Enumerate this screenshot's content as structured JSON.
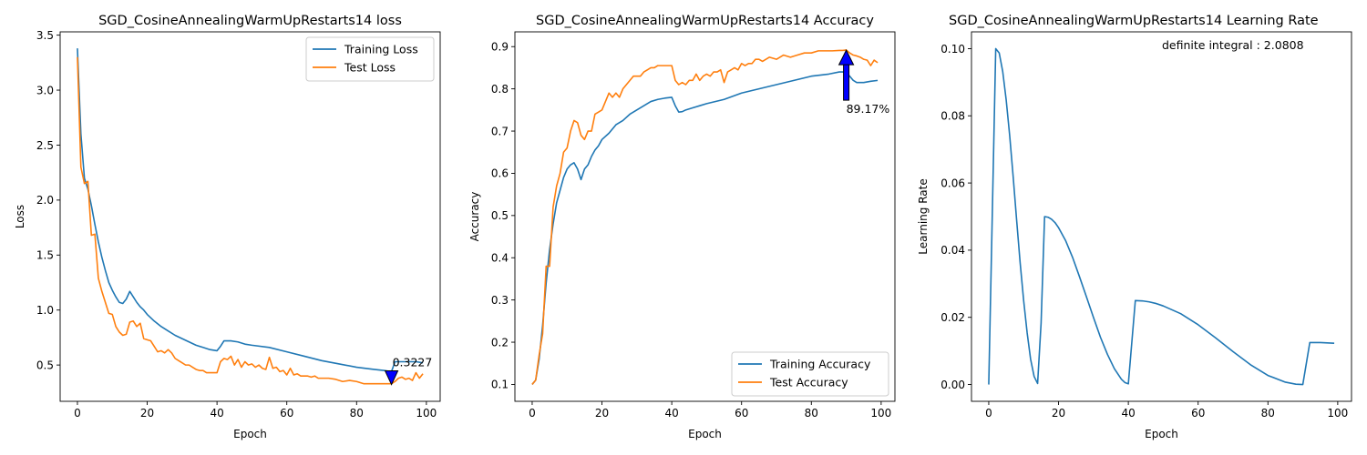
{
  "colors": {
    "training": "#1f77b4",
    "test": "#ff7f0e",
    "arrow_fill": "#0000ff",
    "arrow_edge": "#000000"
  },
  "chart_data": [
    {
      "type": "line",
      "title": "SGD_CosineAnnealingWarmUpRestarts14 loss",
      "xlabel": "Epoch",
      "ylabel": "Loss",
      "xlim": [
        -4.95,
        103.95
      ],
      "ylim": [
        0.17,
        3.53
      ],
      "xticks": [
        0,
        20,
        40,
        60,
        80,
        100
      ],
      "yticks": [
        0.5,
        1.0,
        1.5,
        2.0,
        2.5,
        3.0,
        3.5
      ],
      "ytick_labels": [
        "0.5",
        "1.0",
        "1.5",
        "2.0",
        "2.5",
        "3.0",
        "3.5"
      ],
      "legend": "top-right",
      "grid": false,
      "series": [
        {
          "name": "Training Loss",
          "color": "#1f77b4",
          "x": [
            0,
            1,
            2,
            3,
            4,
            5,
            6,
            7,
            8,
            9,
            10,
            11,
            12,
            13,
            14,
            15,
            16,
            17,
            18,
            19,
            20,
            22,
            24,
            26,
            28,
            30,
            32,
            34,
            36,
            38,
            40,
            41,
            42,
            44,
            46,
            48,
            50,
            55,
            60,
            65,
            70,
            75,
            80,
            85,
            88,
            90,
            91,
            93,
            95,
            97,
            99
          ],
          "y": [
            3.38,
            2.6,
            2.2,
            2.1,
            1.95,
            1.78,
            1.62,
            1.48,
            1.36,
            1.25,
            1.18,
            1.12,
            1.07,
            1.06,
            1.1,
            1.17,
            1.12,
            1.07,
            1.03,
            1.0,
            0.96,
            0.9,
            0.85,
            0.81,
            0.77,
            0.74,
            0.71,
            0.68,
            0.66,
            0.64,
            0.63,
            0.67,
            0.72,
            0.72,
            0.71,
            0.69,
            0.68,
            0.66,
            0.62,
            0.58,
            0.54,
            0.51,
            0.48,
            0.46,
            0.45,
            0.44,
            0.53,
            0.53,
            0.53,
            0.53,
            0.52
          ]
        },
        {
          "name": "Test Loss",
          "color": "#ff7f0e",
          "x": [
            0,
            1,
            2,
            3,
            4,
            5,
            6,
            7,
            8,
            9,
            10,
            11,
            12,
            13,
            14,
            15,
            16,
            17,
            18,
            19,
            20,
            21,
            22,
            23,
            24,
            25,
            26,
            27,
            28,
            29,
            30,
            31,
            32,
            33,
            34,
            35,
            36,
            37,
            38,
            39,
            40,
            41,
            42,
            43,
            44,
            45,
            46,
            47,
            48,
            49,
            50,
            51,
            52,
            53,
            54,
            55,
            56,
            57,
            58,
            59,
            60,
            61,
            62,
            63,
            64,
            65,
            66,
            67,
            68,
            69,
            70,
            72,
            74,
            76,
            78,
            80,
            82,
            84,
            86,
            88,
            89,
            90,
            91,
            92,
            93,
            94,
            95,
            96,
            97,
            98,
            99
          ],
          "y": [
            3.3,
            2.3,
            2.15,
            2.17,
            1.68,
            1.69,
            1.29,
            1.17,
            1.07,
            0.97,
            0.96,
            0.85,
            0.8,
            0.77,
            0.78,
            0.89,
            0.9,
            0.85,
            0.88,
            0.74,
            0.73,
            0.72,
            0.67,
            0.62,
            0.63,
            0.61,
            0.64,
            0.61,
            0.56,
            0.54,
            0.52,
            0.5,
            0.5,
            0.48,
            0.46,
            0.45,
            0.45,
            0.43,
            0.43,
            0.43,
            0.43,
            0.53,
            0.56,
            0.55,
            0.58,
            0.5,
            0.55,
            0.48,
            0.53,
            0.5,
            0.51,
            0.48,
            0.5,
            0.47,
            0.46,
            0.57,
            0.47,
            0.48,
            0.44,
            0.45,
            0.41,
            0.47,
            0.41,
            0.42,
            0.4,
            0.4,
            0.4,
            0.39,
            0.4,
            0.38,
            0.38,
            0.38,
            0.37,
            0.35,
            0.36,
            0.35,
            0.33,
            0.33,
            0.33,
            0.33,
            0.33,
            0.33,
            0.35,
            0.38,
            0.39,
            0.37,
            0.38,
            0.36,
            0.43,
            0.38,
            0.42
          ]
        }
      ],
      "annotation": {
        "text": "0.3227",
        "x": 90,
        "y": 0.3227,
        "direction": "down"
      }
    },
    {
      "type": "line",
      "title": "SGD_CosineAnnealingWarmUpRestarts14 Accuracy",
      "xlabel": "Epoch",
      "ylabel": "Accuracy",
      "xlim": [
        -4.95,
        103.95
      ],
      "ylim": [
        0.06,
        0.935
      ],
      "xticks": [
        0,
        20,
        40,
        60,
        80,
        100
      ],
      "yticks": [
        0.1,
        0.2,
        0.3,
        0.4,
        0.5,
        0.6,
        0.7,
        0.8,
        0.9
      ],
      "ytick_labels": [
        "0.1",
        "0.2",
        "0.3",
        "0.4",
        "0.5",
        "0.6",
        "0.7",
        "0.8",
        "0.9"
      ],
      "legend": "lower-right",
      "grid": false,
      "series": [
        {
          "name": "Training Accuracy",
          "color": "#1f77b4",
          "x": [
            0,
            1,
            2,
            3,
            4,
            5,
            6,
            7,
            8,
            9,
            10,
            11,
            12,
            13,
            14,
            15,
            16,
            17,
            18,
            19,
            20,
            22,
            24,
            26,
            28,
            30,
            32,
            34,
            36,
            38,
            40,
            41,
            42,
            43,
            44,
            46,
            48,
            50,
            55,
            60,
            65,
            70,
            75,
            80,
            85,
            88,
            89,
            90,
            91,
            92,
            93,
            95,
            97,
            99
          ],
          "y": [
            0.1,
            0.11,
            0.16,
            0.24,
            0.34,
            0.42,
            0.48,
            0.53,
            0.56,
            0.59,
            0.61,
            0.62,
            0.625,
            0.61,
            0.585,
            0.61,
            0.62,
            0.64,
            0.655,
            0.665,
            0.68,
            0.695,
            0.715,
            0.725,
            0.74,
            0.75,
            0.76,
            0.77,
            0.775,
            0.778,
            0.78,
            0.76,
            0.745,
            0.746,
            0.75,
            0.755,
            0.76,
            0.765,
            0.775,
            0.79,
            0.8,
            0.81,
            0.82,
            0.83,
            0.835,
            0.84,
            0.84,
            0.838,
            0.83,
            0.82,
            0.815,
            0.815,
            0.818,
            0.82
          ]
        },
        {
          "name": "Test Accuracy",
          "color": "#ff7f0e",
          "x": [
            0,
            1,
            2,
            3,
            4,
            5,
            6,
            7,
            8,
            9,
            10,
            11,
            12,
            13,
            14,
            15,
            16,
            17,
            18,
            19,
            20,
            21,
            22,
            23,
            24,
            25,
            26,
            27,
            28,
            29,
            30,
            31,
            32,
            33,
            34,
            35,
            36,
            37,
            38,
            39,
            40,
            41,
            42,
            43,
            44,
            45,
            46,
            47,
            48,
            49,
            50,
            51,
            52,
            53,
            54,
            55,
            56,
            57,
            58,
            59,
            60,
            61,
            62,
            63,
            64,
            65,
            66,
            68,
            70,
            72,
            74,
            76,
            78,
            80,
            82,
            84,
            86,
            88,
            89,
            90,
            91,
            92,
            93,
            94,
            95,
            96,
            97,
            98,
            99
          ],
          "y": [
            0.1,
            0.11,
            0.17,
            0.22,
            0.38,
            0.38,
            0.52,
            0.57,
            0.6,
            0.65,
            0.66,
            0.7,
            0.725,
            0.72,
            0.69,
            0.68,
            0.7,
            0.7,
            0.74,
            0.745,
            0.75,
            0.77,
            0.79,
            0.78,
            0.79,
            0.78,
            0.8,
            0.81,
            0.82,
            0.83,
            0.83,
            0.83,
            0.84,
            0.845,
            0.85,
            0.85,
            0.855,
            0.855,
            0.855,
            0.855,
            0.855,
            0.82,
            0.81,
            0.815,
            0.81,
            0.82,
            0.82,
            0.835,
            0.82,
            0.83,
            0.835,
            0.83,
            0.84,
            0.84,
            0.845,
            0.815,
            0.84,
            0.845,
            0.85,
            0.845,
            0.86,
            0.855,
            0.86,
            0.86,
            0.87,
            0.87,
            0.865,
            0.875,
            0.87,
            0.88,
            0.875,
            0.88,
            0.885,
            0.885,
            0.89,
            0.89,
            0.89,
            0.891,
            0.891,
            0.892,
            0.885,
            0.88,
            0.878,
            0.875,
            0.87,
            0.868,
            0.855,
            0.868,
            0.862
          ]
        }
      ],
      "annotation": {
        "text": "89.17%",
        "x": 90,
        "y": 0.8917,
        "direction": "up"
      }
    },
    {
      "type": "line",
      "title": "SGD_CosineAnnealingWarmUpRestarts14 Learning Rate",
      "xlabel": "Epoch",
      "ylabel": "Learning Rate",
      "xlim": [
        -4.95,
        103.95
      ],
      "ylim": [
        -0.005,
        0.105
      ],
      "xticks": [
        0,
        20,
        40,
        60,
        80,
        100
      ],
      "yticks": [
        0.0,
        0.02,
        0.04,
        0.06,
        0.08,
        0.1
      ],
      "ytick_labels": [
        "0.00",
        "0.02",
        "0.04",
        "0.06",
        "0.08",
        "0.10"
      ],
      "grid": false,
      "series": [
        {
          "color": "#1f77b4",
          "x": [
            0,
            2,
            3,
            4,
            5,
            6,
            7,
            8,
            9,
            10,
            11,
            12,
            13,
            14,
            15,
            16,
            17,
            18,
            19,
            20,
            22,
            24,
            26,
            28,
            30,
            32,
            34,
            36,
            38,
            39,
            40,
            42,
            44,
            46,
            48,
            50,
            55,
            60,
            65,
            70,
            75,
            80,
            85,
            88,
            90,
            92,
            95,
            99
          ],
          "y": [
            0.0,
            0.1,
            0.0987,
            0.0932,
            0.0847,
            0.0741,
            0.0618,
            0.0488,
            0.0362,
            0.025,
            0.0154,
            0.0075,
            0.0024,
            0.0003,
            0.0183,
            0.05,
            0.0498,
            0.0492,
            0.0482,
            0.0467,
            0.0429,
            0.0379,
            0.0321,
            0.0261,
            0.02,
            0.0141,
            0.009,
            0.0047,
            0.0016,
            0.0006,
            0.0002,
            0.025,
            0.0249,
            0.0246,
            0.0241,
            0.0234,
            0.0211,
            0.0178,
            0.0139,
            0.0098,
            0.0059,
            0.0027,
            0.0007,
            0.0001,
            0.0,
            0.0125,
            0.0125,
            0.0123
          ]
        }
      ],
      "annotation": {
        "text": "definite integral : 2.0808"
      }
    }
  ]
}
